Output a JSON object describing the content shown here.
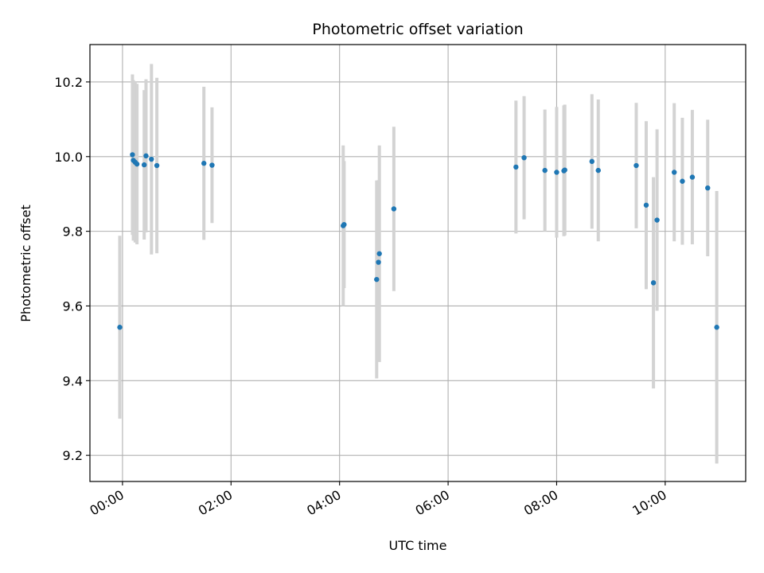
{
  "chart_data": {
    "type": "scatter",
    "title": "Photometric offset variation",
    "xlabel": "UTC time",
    "ylabel": "Photometric offset",
    "xlim": [
      "23:24",
      "11:29"
    ],
    "ylim": [
      9.13,
      10.3
    ],
    "x_ticks": [
      "00:00",
      "02:00",
      "04:00",
      "06:00",
      "08:00",
      "10:00"
    ],
    "y_ticks": [
      "9.2",
      "9.4",
      "9.6",
      "9.8",
      "10.0",
      "10.2"
    ],
    "grid": true,
    "marker_color": "#1f77b4",
    "errorbar_color": "#d3d3d3",
    "points": [
      {
        "time": "23:57",
        "y": 9.543,
        "yerr": 0.245
      },
      {
        "time": "00:11",
        "y": 10.005,
        "yerr": 0.215
      },
      {
        "time": "00:12",
        "y": 9.99,
        "yerr": 0.215
      },
      {
        "time": "00:14",
        "y": 9.985,
        "yerr": 0.215
      },
      {
        "time": "00:16",
        "y": 9.98,
        "yerr": 0.215
      },
      {
        "time": "00:24",
        "y": 9.978,
        "yerr": 0.2
      },
      {
        "time": "00:26",
        "y": 10.002,
        "yerr": 0.205
      },
      {
        "time": "00:32",
        "y": 9.993,
        "yerr": 0.255
      },
      {
        "time": "00:38",
        "y": 9.976,
        "yerr": 0.235
      },
      {
        "time": "01:30",
        "y": 9.982,
        "yerr": 0.205
      },
      {
        "time": "01:39",
        "y": 9.977,
        "yerr": 0.155
      },
      {
        "time": "04:04",
        "y": 9.815,
        "yerr": 0.215
      },
      {
        "time": "04:05",
        "y": 9.818,
        "yerr": 0.17
      },
      {
        "time": "04:41",
        "y": 9.671,
        "yerr": 0.265
      },
      {
        "time": "04:43",
        "y": 9.717,
        "yerr": 0.22
      },
      {
        "time": "04:44",
        "y": 9.74,
        "yerr": 0.29
      },
      {
        "time": "05:00",
        "y": 9.86,
        "yerr": 0.22
      },
      {
        "time": "07:15",
        "y": 9.972,
        "yerr": 0.178
      },
      {
        "time": "07:24",
        "y": 9.997,
        "yerr": 0.165
      },
      {
        "time": "07:47",
        "y": 9.963,
        "yerr": 0.163
      },
      {
        "time": "08:00",
        "y": 9.958,
        "yerr": 0.175
      },
      {
        "time": "08:08",
        "y": 9.962,
        "yerr": 0.175
      },
      {
        "time": "08:09",
        "y": 9.964,
        "yerr": 0.175
      },
      {
        "time": "08:39",
        "y": 9.987,
        "yerr": 0.18
      },
      {
        "time": "08:46",
        "y": 9.963,
        "yerr": 0.19
      },
      {
        "time": "09:28",
        "y": 9.976,
        "yerr": 0.168
      },
      {
        "time": "09:39",
        "y": 9.87,
        "yerr": 0.225
      },
      {
        "time": "09:47",
        "y": 9.662,
        "yerr": 0.283
      },
      {
        "time": "09:51",
        "y": 9.83,
        "yerr": 0.243
      },
      {
        "time": "10:10",
        "y": 9.958,
        "yerr": 0.185
      },
      {
        "time": "10:19",
        "y": 9.934,
        "yerr": 0.17
      },
      {
        "time": "10:30",
        "y": 9.945,
        "yerr": 0.18
      },
      {
        "time": "10:47",
        "y": 9.916,
        "yerr": 0.183
      },
      {
        "time": "10:57",
        "y": 9.543,
        "yerr": 0.365
      }
    ]
  }
}
